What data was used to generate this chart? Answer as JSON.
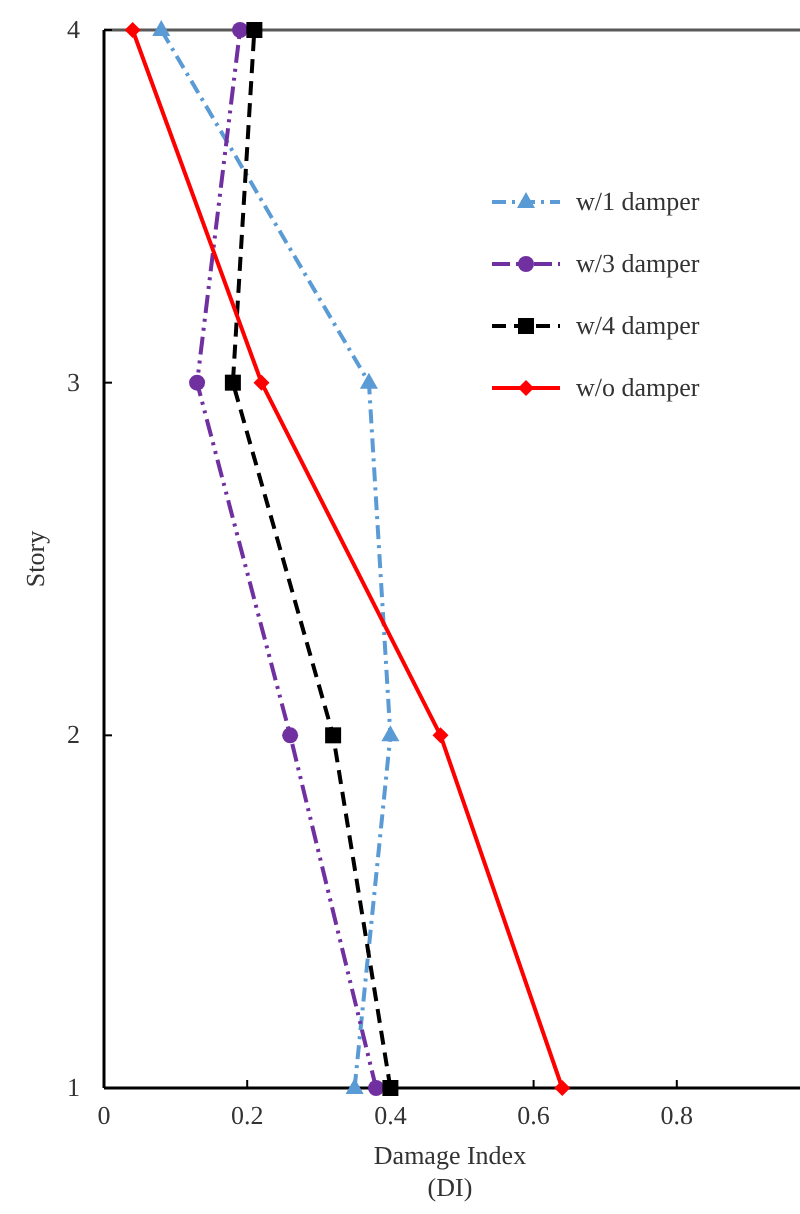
{
  "chart_data": {
    "type": "line",
    "xlabel": "Damage Index\n(DI)",
    "ylabel": "Story",
    "xlim": [
      0,
      1
    ],
    "xticks": [
      0,
      0.2,
      0.4,
      0.6,
      0.8
    ],
    "ylim": [
      1,
      4
    ],
    "yticks": [
      1,
      2,
      3,
      4
    ],
    "legend": "right",
    "grid": false,
    "series": [
      {
        "name": "w/1 damper",
        "color": "#5b9bd5",
        "marker": "triangle",
        "line_style": "dashdot",
        "x": [
          0.35,
          0.4,
          0.37,
          0.08
        ],
        "values": [
          1,
          2,
          3,
          4
        ]
      },
      {
        "name": "w/3 damper",
        "color": "#7030a0",
        "marker": "circle",
        "line_style": "dashdotdot",
        "x": [
          0.38,
          0.26,
          0.13,
          0.19
        ],
        "values": [
          1,
          2,
          3,
          4
        ]
      },
      {
        "name": "w/4 damper",
        "color": "#000000",
        "marker": "square",
        "line_style": "dashed",
        "x": [
          0.4,
          0.32,
          0.18,
          0.21
        ],
        "values": [
          1,
          2,
          3,
          4
        ]
      },
      {
        "name": "w/o damper",
        "color": "#ff0000",
        "marker": "diamond",
        "line_style": "solid",
        "x": [
          0.64,
          0.47,
          0.22,
          0.04
        ],
        "values": [
          1,
          2,
          3,
          4
        ]
      }
    ]
  }
}
